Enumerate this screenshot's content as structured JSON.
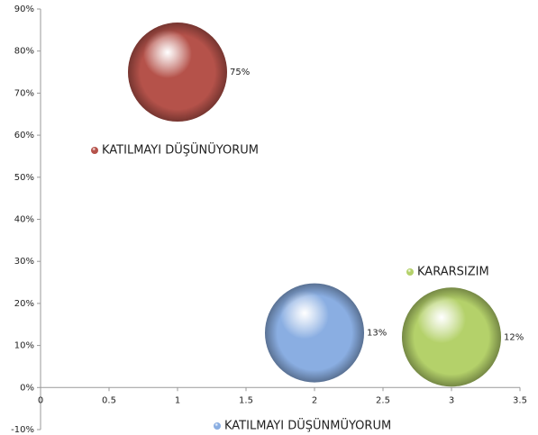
{
  "chart_data": {
    "type": "bubble",
    "series": [
      {
        "name": "KATILMAYI DÜŞÜNÜYORUM",
        "color": "#b5524a",
        "x": [
          1
        ],
        "values": [
          75
        ],
        "value_labels": [
          "75%"
        ]
      },
      {
        "name": "KATILMAYI DÜŞÜNMÜYORUM",
        "color": "#8aaee2",
        "x": [
          2
        ],
        "values": [
          13
        ],
        "value_labels": [
          "13%"
        ]
      },
      {
        "name": "KARARSIZIM",
        "color": "#b4d16a",
        "x": [
          3
        ],
        "values": [
          12
        ],
        "value_labels": [
          "12%"
        ]
      }
    ],
    "xlim": [
      0,
      3.5
    ],
    "xticks": [
      0,
      0.5,
      1,
      1.5,
      2,
      2.5,
      3,
      3.5
    ],
    "ylim": [
      -10,
      90
    ],
    "yticks": [
      {
        "value": -10,
        "label": "-10%"
      },
      {
        "value": 0,
        "label": "0%"
      },
      {
        "value": 10,
        "label": "10%"
      },
      {
        "value": 20,
        "label": "20%"
      },
      {
        "value": 30,
        "label": "30%"
      },
      {
        "value": 40,
        "label": "40%"
      },
      {
        "value": 50,
        "label": "50%"
      },
      {
        "value": 60,
        "label": "60%"
      },
      {
        "value": 70,
        "label": "70%"
      },
      {
        "value": 80,
        "label": "80%"
      },
      {
        "value": 90,
        "label": "90%"
      }
    ],
    "grid": false
  }
}
